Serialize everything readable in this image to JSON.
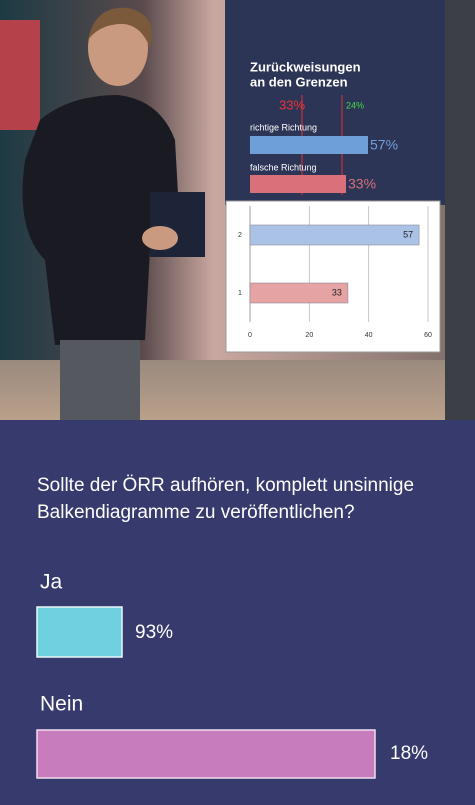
{
  "chart_data": {
    "type": "bar",
    "orientation": "horizontal",
    "categories": [
      "1",
      "2"
    ],
    "values": [
      33,
      57
    ],
    "colors": [
      "#e6a3a3",
      "#a9c2e6"
    ],
    "xlim": [
      0,
      60
    ],
    "xticks": [
      0,
      20,
      40,
      60
    ],
    "grid": true
  },
  "tv_screen": {
    "title_lines": [
      "Zurückweisungen",
      "an den Grenzen"
    ],
    "top_left": "33%",
    "top_right": "24%",
    "rows": [
      {
        "label": "richtige Richtung",
        "result": "57%"
      },
      {
        "label": "falsche Richtung",
        "result": "33%"
      }
    ]
  },
  "poll": {
    "question_lines": [
      "Sollte der ÖRR aufhören, komplett unsinnige",
      "Balkendiagramme zu veröffentlichen?"
    ],
    "options": [
      {
        "label": "Ja",
        "result": "93%"
      },
      {
        "label": "Nein",
        "result": "18%"
      }
    ]
  }
}
